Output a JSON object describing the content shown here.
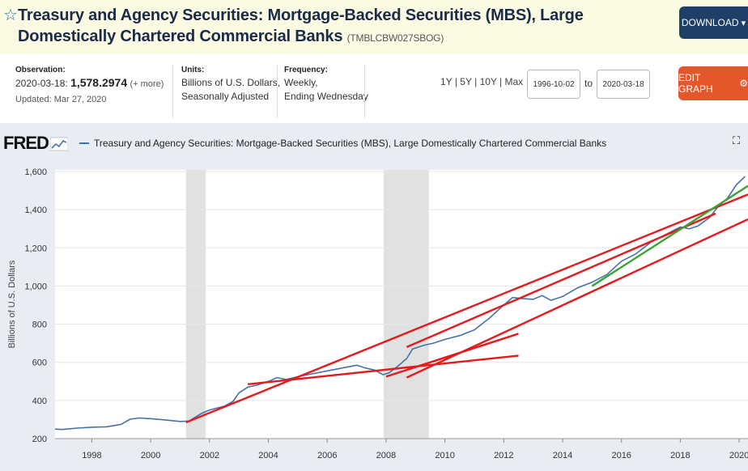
{
  "header": {
    "title": "Treasury and Agency Securities: Mortgage-Backed Securities (MBS), Large Domestically Chartered Commercial Banks",
    "series_id": "(TMBLCBW027SBOG)",
    "download_label": "DOWNLOAD"
  },
  "meta": {
    "observation_label": "Observation:",
    "observation_date": "2020-03-18:",
    "observation_value": "1,578.2974",
    "more": "(+ more)",
    "updated": "Updated: Mar 27, 2020",
    "units_label": "Units:",
    "units_line1": "Billions of U.S. Dollars,",
    "units_line2": "Seasonally Adjusted",
    "frequency_label": "Frequency:",
    "frequency_line1": "Weekly,",
    "frequency_line2": "Ending Wednesday"
  },
  "controls": {
    "range_1y": "1Y",
    "range_5y": "5Y",
    "range_10y": "10Y",
    "range_max": "Max",
    "sep": "|",
    "start_date": "1996-10-02",
    "to_label": "to",
    "end_date": "2020-03-18",
    "edit_label": "EDIT GRAPH"
  },
  "fred": {
    "logo": "FRED",
    "legend": "Treasury and Agency Securities: Mortgage-Backed Securities (MBS), Large Domestically Chartered Commercial Banks"
  },
  "colors": {
    "series": "#4572a7",
    "recession": "#e1e1e1",
    "trend_red": "#e41a1c",
    "trend_green": "#3aa335",
    "download_bg": "#1e3f66",
    "edit_bg": "#e5572b"
  },
  "icons": {
    "star": "star-icon",
    "download": "gear-icon",
    "expand": "expand-icon"
  },
  "chart_data": {
    "type": "line",
    "title": "Treasury and Agency Securities: Mortgage-Backed Securities (MBS), Large Domestically Chartered Commercial Banks",
    "ylabel": "Billions of U.S. Dollars",
    "xlabel": "",
    "xlim": [
      1996.75,
      2020.3
    ],
    "ylim": [
      200,
      1600
    ],
    "yticks": [
      200,
      400,
      600,
      800,
      1000,
      1200,
      1400,
      1600
    ],
    "ytick_labels": [
      "200",
      "400",
      "600",
      "800",
      "1,000",
      "1,200",
      "1,400",
      "1,600"
    ],
    "xticks": [
      1998,
      2000,
      2002,
      2004,
      2006,
      2008,
      2010,
      2012,
      2014,
      2016,
      2018,
      2020
    ],
    "xtick_labels": [
      "1998",
      "2000",
      "2002",
      "2004",
      "2006",
      "2008",
      "2010",
      "2012",
      "2014",
      "2016",
      "2018",
      "2020"
    ],
    "recessions": [
      [
        2001.2,
        2001.87
      ],
      [
        2007.92,
        2009.45
      ]
    ],
    "series": [
      {
        "name": "TMBLCBW027SBOG",
        "x": [
          1996.75,
          1997.0,
          1997.5,
          1998.0,
          1998.5,
          1999.0,
          1999.3,
          1999.6,
          2000.0,
          2000.5,
          2001.0,
          2001.3,
          2001.7,
          2002.0,
          2002.5,
          2002.8,
          2003.0,
          2003.3,
          2003.6,
          2004.0,
          2004.3,
          2004.6,
          2005.0,
          2005.5,
          2006.0,
          2006.5,
          2007.0,
          2007.3,
          2007.6,
          2007.9,
          2008.1,
          2008.4,
          2008.7,
          2008.9,
          2009.1,
          2009.3,
          2009.6,
          2010.0,
          2010.5,
          2011.0,
          2011.5,
          2012.0,
          2012.3,
          2012.6,
          2013.0,
          2013.3,
          2013.6,
          2014.0,
          2014.5,
          2015.0,
          2015.5,
          2016.0,
          2016.5,
          2017.0,
          2017.5,
          2018.0,
          2018.3,
          2018.6,
          2019.0,
          2019.3,
          2019.6,
          2019.9,
          2020.2
        ],
        "values": [
          250,
          248,
          255,
          260,
          262,
          275,
          302,
          308,
          305,
          298,
          290,
          292,
          330,
          350,
          370,
          395,
          440,
          470,
          480,
          500,
          520,
          510,
          525,
          540,
          555,
          570,
          585,
          570,
          560,
          535,
          545,
          580,
          620,
          670,
          680,
          690,
          700,
          720,
          740,
          770,
          830,
          900,
          940,
          935,
          930,
          950,
          925,
          945,
          990,
          1020,
          1060,
          1130,
          1170,
          1230,
          1270,
          1310,
          1300,
          1315,
          1360,
          1420,
          1460,
          1530,
          1575
        ]
      }
    ],
    "trendlines": [
      {
        "color": "red",
        "x": [
          2001.2,
          2020.3
        ],
        "values": [
          285,
          1480
        ]
      },
      {
        "color": "red",
        "x": [
          2003.3,
          2012.5
        ],
        "values": [
          485,
          635
        ]
      },
      {
        "color": "red",
        "x": [
          2008.0,
          2012.5
        ],
        "values": [
          525,
          750
        ]
      },
      {
        "color": "red",
        "x": [
          2008.7,
          2019.2
        ],
        "values": [
          680,
          1380
        ]
      },
      {
        "color": "red",
        "x": [
          2008.7,
          2020.3
        ],
        "values": [
          520,
          1350
        ]
      },
      {
        "color": "green",
        "x": [
          2015.0,
          2020.3
        ],
        "values": [
          1000,
          1525
        ]
      }
    ]
  }
}
